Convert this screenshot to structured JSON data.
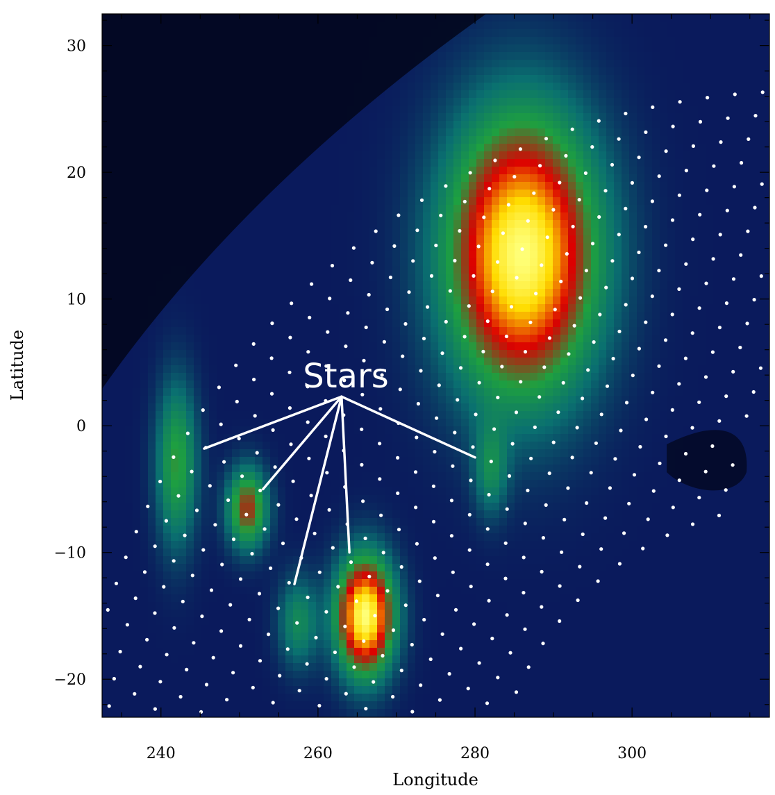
{
  "chart_data": {
    "type": "heatmap",
    "title": "",
    "xlabel": "Longitude",
    "ylabel": "Latitude",
    "xlim": [
      232.5,
      317.5
    ],
    "ylim": [
      -23,
      32.5
    ],
    "x_ticks": [
      240,
      260,
      280,
      300
    ],
    "y_ticks": [
      -20,
      -10,
      0,
      10,
      20,
      30
    ],
    "x_tick_labels": [
      "240",
      "260",
      "280",
      "300"
    ],
    "y_tick_labels": [
      "−20",
      "−10",
      "0",
      "10",
      "20",
      "30"
    ],
    "colormap": [
      "#000000",
      "#0a1a5c",
      "#0a7070",
      "#1ea040",
      "#dc0000",
      "#ffdc00",
      "#ffff78"
    ],
    "background_color": "#0a1a5c",
    "sample_dot_color": "#ffffff",
    "sources": [
      {
        "lon": 286,
        "lat": 13.5,
        "sigma_lon": 6.5,
        "sigma_lat": 7.5,
        "peak": 1.0
      },
      {
        "lon": 266,
        "lat": -15,
        "sigma_lon": 2.5,
        "sigma_lat": 3.2,
        "peak": 1.0
      },
      {
        "lon": 251,
        "lat": -6.5,
        "sigma_lon": 1.8,
        "sigma_lat": 2.2,
        "peak": 0.55
      },
      {
        "lon": 242,
        "lat": -3,
        "sigma_lon": 1.8,
        "sigma_lat": 4.5,
        "peak": 0.4
      },
      {
        "lon": 257.5,
        "lat": -15.5,
        "sigma_lon": 1.8,
        "sigma_lat": 2.5,
        "peak": 0.28
      },
      {
        "lon": 282,
        "lat": -3.5,
        "sigma_lon": 1.5,
        "sigma_lat": 2.5,
        "peak": 0.25
      }
    ],
    "annotations": [
      {
        "text": "Stars",
        "lon": 263,
        "lat": 2.3,
        "pointers": [
          {
            "lon": 245.5,
            "lat": -1.8
          },
          {
            "lon": 253,
            "lat": -5
          },
          {
            "lon": 257,
            "lat": -12.5
          },
          {
            "lon": 264,
            "lat": -10
          },
          {
            "lon": 280,
            "lat": -2.5
          }
        ]
      }
    ]
  }
}
